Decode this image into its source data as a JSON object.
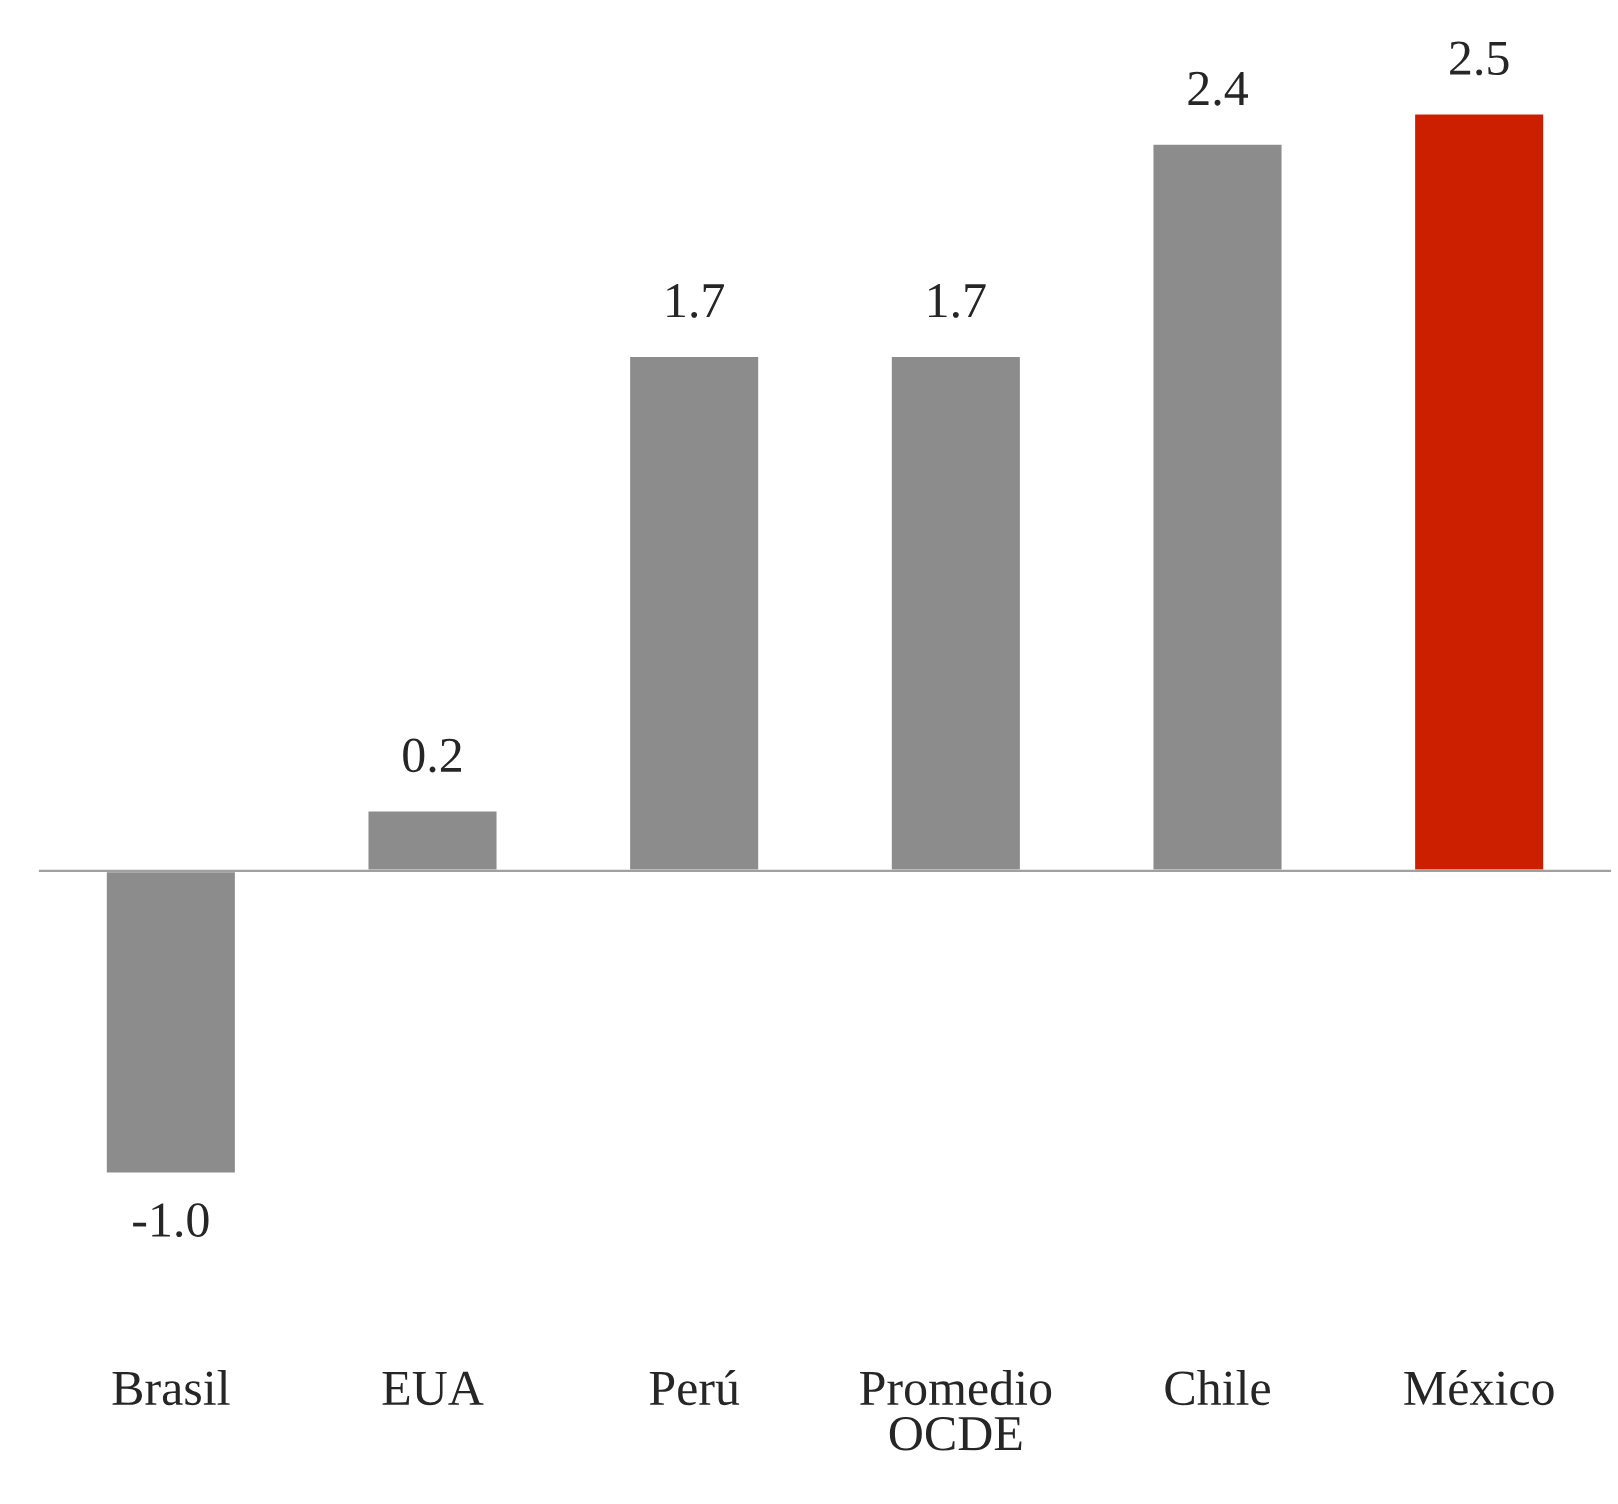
{
  "chart_data": {
    "type": "bar",
    "categories": [
      "Brasil",
      "EUA",
      "Perú",
      "Promedio\nOCDE",
      "Chile",
      "México"
    ],
    "values": [
      -1.0,
      0.2,
      1.7,
      1.7,
      2.4,
      2.5
    ],
    "colors": [
      "#8c8c8c",
      "#8c8c8c",
      "#8c8c8c",
      "#8c8c8c",
      "#8c8c8c",
      "#cc1f00"
    ],
    "value_labels": [
      "-1.0",
      "0.2",
      "1.7",
      "1.7",
      "2.4",
      "2.5"
    ],
    "grid": false,
    "legend": false
  }
}
